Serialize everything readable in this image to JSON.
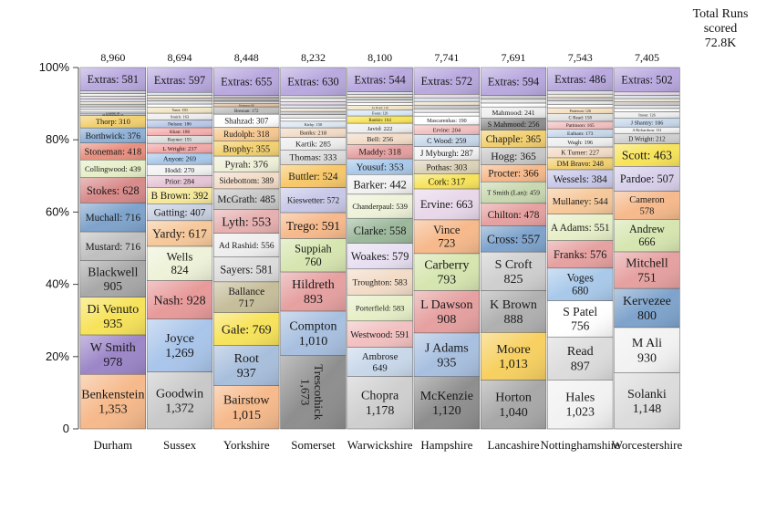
{
  "summary": {
    "title_line1": "Total Runs",
    "title_line2": "scored",
    "total": "72.8K"
  },
  "chart_data": {
    "type": "stacked-bar-100",
    "y_ticks": [
      "0",
      "20%",
      "40%",
      "60%",
      "80%",
      "100%"
    ],
    "ylim": [
      0,
      100
    ],
    "columns": [
      {
        "name": "Durham",
        "total_label": "8,960",
        "total": 8960,
        "labeled": [
          {
            "name": "Benkenstein",
            "value": 1353,
            "color": "#f6b98b",
            "wrap": true
          },
          {
            "name": "W Smith",
            "value": 978,
            "color": "#9c86c8",
            "wrap": true
          },
          {
            "name": "Di Venuto",
            "value": 935,
            "color": "#f7e35a",
            "wrap": true
          },
          {
            "name": "Blackwell",
            "value": 905,
            "color": "#a8a8a8",
            "wrap": true
          },
          {
            "name": "Mustard",
            "value": 716,
            "color": "#c0c0c0",
            "wrap": false
          },
          {
            "name": "Muchall",
            "value": 716,
            "color": "#7ea3cc",
            "wrap": false
          },
          {
            "name": "Stokes",
            "value": 628,
            "color": "#d88a8a",
            "wrap": false
          },
          {
            "name": "Collingwood",
            "value": 439,
            "color": "#e6efc8",
            "wrap": false
          },
          {
            "name": "Stoneman",
            "value": 418,
            "color": "#e89080",
            "wrap": false
          },
          {
            "name": "Borthwick",
            "value": 376,
            "color": "#8fb0d6",
            "wrap": false
          },
          {
            "name": "Thorp",
            "value": 310,
            "color": "#f2d070",
            "wrap": false
          },
          {
            "name": "M Richardson",
            "value": 35,
            "color": "#dddddd",
            "wrap": false
          },
          {
            "name": "Coetzer",
            "value": 45,
            "color": "#c8d8e8",
            "wrap": false
          }
        ],
        "tiny_segments": 8,
        "extras": {
          "name": "Extras",
          "value": 581,
          "color": "#b9a9df"
        }
      },
      {
        "name": "Sussex",
        "total_label": "8,694",
        "total": 8694,
        "labeled": [
          {
            "name": "Goodwin",
            "value": 1372,
            "color": "#c9c9c9",
            "wrap": true
          },
          {
            "name": "Joyce",
            "value": 1269,
            "color": "#a9c5ea",
            "wrap": true
          },
          {
            "name": "Nash",
            "value": 928,
            "color": "#e89a9a",
            "wrap": false
          },
          {
            "name": "Wells",
            "value": 824,
            "color": "#eef2d8",
            "wrap": true
          },
          {
            "name": "Yardy",
            "value": 617,
            "color": "#f6c89a",
            "wrap": false
          },
          {
            "name": "Gatting",
            "value": 407,
            "color": "#c8d0e0",
            "wrap": false
          },
          {
            "name": "B Brown",
            "value": 392,
            "color": "#f6e89a",
            "wrap": false
          },
          {
            "name": "Prior",
            "value": 284,
            "color": "#e6c6d6",
            "wrap": false
          },
          {
            "name": "Hodd",
            "value": 270,
            "color": "#f2f2f2",
            "wrap": false
          },
          {
            "name": "Anyon",
            "value": 269,
            "color": "#a9c9ea",
            "wrap": false
          },
          {
            "name": "L Wright",
            "value": 237,
            "color": "#f2a8a8",
            "wrap": false
          },
          {
            "name": "Rayner",
            "value": 191,
            "color": "#dcdcdc",
            "wrap": false
          },
          {
            "name": "Khan",
            "value": 186,
            "color": "#f7b0b0",
            "wrap": false
          },
          {
            "name": "Nelson",
            "value": 186,
            "color": "#b9c9e9",
            "wrap": false
          },
          {
            "name": "Smith",
            "value": 163,
            "color": "#eeeeee",
            "wrap": false
          },
          {
            "name": "Yasir",
            "value": 150,
            "color": "#f2e6c6",
            "wrap": false
          }
        ],
        "tiny_segments": 5,
        "extras": {
          "name": "Extras",
          "value": 597,
          "color": "#b9a9df"
        }
      },
      {
        "name": "Yorkshire",
        "total_label": "8,448",
        "total": 8448,
        "labeled": [
          {
            "name": "Bairstow",
            "value": 1015,
            "color": "#f6b98b",
            "wrap": true
          },
          {
            "name": "Root",
            "value": 937,
            "color": "#a8bfdc",
            "wrap": true
          },
          {
            "name": "Gale",
            "value": 769,
            "color": "#f7e35a",
            "wrap": false
          },
          {
            "name": "Ballance",
            "value": 717,
            "color": "#c6bd9a",
            "wrap": true
          },
          {
            "name": "Sayers",
            "value": 581,
            "color": "#dcdcdc",
            "wrap": false
          },
          {
            "name": "Ad Rashid",
            "value": 556,
            "color": "#eeeeee",
            "wrap": false
          },
          {
            "name": "Lyth",
            "value": 553,
            "color": "#e6b0b0",
            "wrap": false
          },
          {
            "name": "McGrath",
            "value": 485,
            "color": "#c8c8c8",
            "wrap": false
          },
          {
            "name": "Sidebottom",
            "value": 389,
            "color": "#f2dcc8",
            "wrap": false
          },
          {
            "name": "Pyrah",
            "value": 376,
            "color": "#eef0d8",
            "wrap": false
          },
          {
            "name": "Brophy",
            "value": 355,
            "color": "#f2d070",
            "wrap": false
          },
          {
            "name": "Rudolph",
            "value": 318,
            "color": "#f6c890",
            "wrap": false
          },
          {
            "name": "Shahzad",
            "value": 307,
            "color": "#ffffff",
            "wrap": false
          },
          {
            "name": "Bresnan",
            "value": 172,
            "color": "#c0c0c0",
            "wrap": false
          },
          {
            "name": "Patterson",
            "value": 80,
            "color": "#e0c0a0",
            "wrap": false
          }
        ],
        "tiny_segments": 6,
        "extras": {
          "name": "Extras",
          "value": 655,
          "color": "#b9a9df"
        }
      },
      {
        "name": "Somerset",
        "total_label": "8,232",
        "total": 8232,
        "labeled": [
          {
            "name": "Trescothick",
            "value": 1673,
            "color": "#8e8e8e",
            "wrap": true,
            "vertical": true
          },
          {
            "name": "Compton",
            "value": 1010,
            "color": "#a8c0e0",
            "wrap": true
          },
          {
            "name": "Hildreth",
            "value": 893,
            "color": "#e6a0a0",
            "wrap": true
          },
          {
            "name": "Suppiah",
            "value": 760,
            "color": "#d6e6b0",
            "wrap": true
          },
          {
            "name": "Trego",
            "value": 591,
            "color": "#f6b98b",
            "wrap": false
          },
          {
            "name": "Kieswetter",
            "value": 572,
            "color": "#c8c8e8",
            "wrap": true
          },
          {
            "name": "Buttler",
            "value": 524,
            "color": "#f7c86a",
            "wrap": false
          },
          {
            "name": "Thomas",
            "value": 333,
            "color": "#dcdcdc",
            "wrap": false
          },
          {
            "name": "Kartik",
            "value": 285,
            "color": "#eeeeee",
            "wrap": false
          },
          {
            "name": "Banks",
            "value": 218,
            "color": "#f2dcc8",
            "wrap": false
          },
          {
            "name": "Kirby",
            "value": 150,
            "color": "#dde8f2",
            "wrap": false
          }
        ],
        "tiny_segments": 8,
        "extras": {
          "name": "Extras",
          "value": 630,
          "color": "#b9a9df"
        }
      },
      {
        "name": "Warwickshire",
        "total_label": "8,100",
        "total": 8100,
        "labeled": [
          {
            "name": "Chopra",
            "value": 1178,
            "color": "#cfcfcf",
            "wrap": true
          },
          {
            "name": "Ambrose",
            "value": 649,
            "color": "#c8d8ea",
            "wrap": true
          },
          {
            "name": "Westwood",
            "value": 591,
            "color": "#f2c0c0",
            "wrap": true
          },
          {
            "name": "Porterfield",
            "value": 583,
            "color": "#e6efc8",
            "wrap": true
          },
          {
            "name": "Troughton",
            "value": 583,
            "color": "#f2dcc8",
            "wrap": true
          },
          {
            "name": "Woakes",
            "value": 579,
            "color": "#e8e0f2",
            "wrap": true
          },
          {
            "name": "Clarke",
            "value": 558,
            "color": "#9cb89c",
            "wrap": false
          },
          {
            "name": "Chanderpaul",
            "value": 539,
            "color": "#eef2d8",
            "wrap": true
          },
          {
            "name": "Barker",
            "value": 442,
            "color": "#f2f2f2",
            "wrap": false
          },
          {
            "name": "Yousuf",
            "value": 353,
            "color": "#a9c9ea",
            "wrap": false
          },
          {
            "name": "Maddy",
            "value": 318,
            "color": "#e6a0a0",
            "wrap": false
          },
          {
            "name": "Bell",
            "value": 256,
            "color": "#f2dcc8",
            "wrap": false
          },
          {
            "name": "Javid",
            "value": 222,
            "color": "#eeeeee",
            "wrap": false
          },
          {
            "name": "Rankin",
            "value": 164,
            "color": "#f7e35a",
            "wrap": false
          },
          {
            "name": "Evans",
            "value": 129,
            "color": "#d8e8f8",
            "wrap": false
          },
          {
            "name": "Le Roux",
            "value": 110,
            "color": "#f2e6c6",
            "wrap": false
          }
        ],
        "tiny_segments": 5,
        "extras": {
          "name": "Extras",
          "value": 544,
          "color": "#b9a9df"
        }
      },
      {
        "name": "Hampshire",
        "total_label": "7,741",
        "total": 7741,
        "labeled": [
          {
            "name": "McKenzie",
            "value": 1120,
            "color": "#8e8e8e",
            "wrap": true
          },
          {
            "name": "J Adams",
            "value": 935,
            "color": "#a8c0e0",
            "wrap": true
          },
          {
            "name": "L Dawson",
            "value": 908,
            "color": "#e6a0a0",
            "wrap": true
          },
          {
            "name": "Carberry",
            "value": 793,
            "color": "#d6e6b0",
            "wrap": true
          },
          {
            "name": "Vince",
            "value": 723,
            "color": "#f6b98b",
            "wrap": true
          },
          {
            "name": "Ervine",
            "value": 663,
            "color": "#e8d8ea",
            "wrap": false
          },
          {
            "name": "Cork",
            "value": 317,
            "color": "#f7e35a",
            "wrap": false
          },
          {
            "name": "Pothas",
            "value": 303,
            "color": "#dcd2b8",
            "wrap": false
          },
          {
            "name": "J Myburgh",
            "value": 287,
            "color": "#f2f2f2",
            "wrap": false
          },
          {
            "name": "C Wood",
            "value": 259,
            "color": "#c8d8ea",
            "wrap": false
          },
          {
            "name": "Ervine",
            "value": 204,
            "color": "#f2c0c0",
            "wrap": false
          },
          {
            "name": "Mascarenhas",
            "value": 190,
            "color": "#ffffff",
            "wrap": false
          }
        ],
        "tiny_segments": 6,
        "extras": {
          "name": "Extras",
          "value": 572,
          "color": "#b9a9df"
        }
      },
      {
        "name": "Lancashire",
        "total_label": "7,691",
        "total": 7691,
        "labeled": [
          {
            "name": "Horton",
            "value": 1040,
            "color": "#a8a8a8",
            "wrap": true
          },
          {
            "name": "Moore",
            "value": 1013,
            "color": "#f7d060",
            "wrap": true
          },
          {
            "name": "K Brown",
            "value": 888,
            "color": "#b0b0b0",
            "wrap": true
          },
          {
            "name": "S Croft",
            "value": 825,
            "color": "#cfcfcf",
            "wrap": true
          },
          {
            "name": "Cross",
            "value": 557,
            "color": "#7ea3cc",
            "wrap": false
          },
          {
            "name": "Chilton",
            "value": 478,
            "color": "#e6a0a0",
            "wrap": false
          },
          {
            "name": "T Smith (Lan)",
            "value": 459,
            "color": "#c8d8b0",
            "wrap": true
          },
          {
            "name": "Procter",
            "value": 366,
            "color": "#f6b98b",
            "wrap": false
          },
          {
            "name": "Hogg",
            "value": 365,
            "color": "#c8c8c8",
            "wrap": false
          },
          {
            "name": "Chapple",
            "value": 365,
            "color": "#f2d070",
            "wrap": false
          },
          {
            "name": "S Mahmood",
            "value": 256,
            "color": "#8e8e8e",
            "wrap": false
          },
          {
            "name": "Mahmood",
            "value": 241,
            "color": "#eeeeee",
            "wrap": false
          }
        ],
        "tiny_segments": 3,
        "extras": {
          "name": "Extras",
          "value": 594,
          "color": "#b9a9df"
        }
      },
      {
        "name": "Nottinghamshire",
        "total_label": "7,543",
        "total": 7543,
        "labeled": [
          {
            "name": "Hales",
            "value": 1023,
            "color": "#f2f2f2",
            "wrap": true
          },
          {
            "name": "Read",
            "value": 897,
            "color": "#dcdcdc",
            "wrap": true
          },
          {
            "name": "S Patel",
            "value": 756,
            "color": "#ffffff",
            "wrap": true
          },
          {
            "name": "Voges",
            "value": 680,
            "color": "#a9c9ea",
            "wrap": true
          },
          {
            "name": "Franks",
            "value": 576,
            "color": "#e6a0a0",
            "wrap": false
          },
          {
            "name": "A Adams",
            "value": 551,
            "color": "#e6efc8",
            "wrap": true
          },
          {
            "name": "Mullaney",
            "value": 544,
            "color": "#f6c89a",
            "wrap": true
          },
          {
            "name": "Wessels",
            "value": 384,
            "color": "#c8c8e8",
            "wrap": false
          },
          {
            "name": "DM Bravo",
            "value": 248,
            "color": "#f2d070",
            "wrap": false
          },
          {
            "name": "K Turner",
            "value": 227,
            "color": "#f2dcc8",
            "wrap": false
          },
          {
            "name": "Wagh",
            "value": 196,
            "color": "#eeeeee",
            "wrap": false
          },
          {
            "name": "Ealham",
            "value": 173,
            "color": "#c8d8ea",
            "wrap": false
          },
          {
            "name": "Pattinson",
            "value": 165,
            "color": "#f2c0c0",
            "wrap": false
          },
          {
            "name": "C Read",
            "value": 158,
            "color": "#e0e0e0",
            "wrap": false
          },
          {
            "name": "Patterson",
            "value": 126,
            "color": "#f6e0c0",
            "wrap": false
          }
        ],
        "tiny_segments": 5,
        "extras": {
          "name": "Extras",
          "value": 486,
          "color": "#b9a9df"
        }
      },
      {
        "name": "Worcestershire",
        "total_label": "7,405",
        "total": 7405,
        "labeled": [
          {
            "name": "Solanki",
            "value": 1148,
            "color": "#dcdcdc",
            "wrap": true
          },
          {
            "name": "M Ali",
            "value": 930,
            "color": "#f2f2f2",
            "wrap": true
          },
          {
            "name": "Kervezee",
            "value": 800,
            "color": "#7ea3cc",
            "wrap": true
          },
          {
            "name": "Mitchell",
            "value": 751,
            "color": "#e6a0a0",
            "wrap": true
          },
          {
            "name": "Andrew",
            "value": 666,
            "color": "#d6e6b0",
            "wrap": true
          },
          {
            "name": "Cameron",
            "value": 578,
            "color": "#f6b98b",
            "wrap": true
          },
          {
            "name": "Pardoe",
            "value": 507,
            "color": "#d8d0ea",
            "wrap": false
          },
          {
            "name": "Scott",
            "value": 463,
            "color": "#f7e35a",
            "wrap": false
          },
          {
            "name": "D Wright",
            "value": 212,
            "color": "#cfcfcf",
            "wrap": false
          },
          {
            "name": "A Richardson",
            "value": 131,
            "color": "#f2f2f2",
            "wrap": false
          },
          {
            "name": "J Shantry",
            "value": 186,
            "color": "#c8d8ea",
            "wrap": false
          },
          {
            "name": "Imran",
            "value": 126,
            "color": "#eeeeee",
            "wrap": false
          }
        ],
        "tiny_segments": 6,
        "extras": {
          "name": "Extras",
          "value": 502,
          "color": "#b9a9df"
        }
      }
    ]
  }
}
